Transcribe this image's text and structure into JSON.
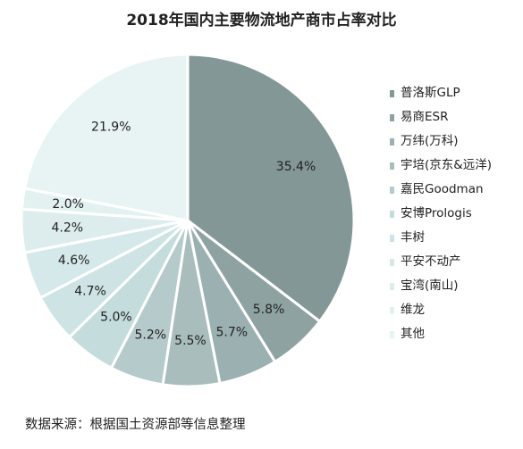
{
  "chart_data": {
    "type": "pie",
    "title": "2018年国内主要物流地产商市占率对比",
    "start": "top",
    "direction": "clockwise",
    "slices": [
      {
        "name": "普洛斯GLP",
        "value": 35.4,
        "label": "35.4%",
        "color": "#849797"
      },
      {
        "name": "易商ESR",
        "value": 5.8,
        "label": "5.8%",
        "color": "#8fa2a2"
      },
      {
        "name": "万纬(万科)",
        "value": 5.7,
        "label": "5.7%",
        "color": "#9bb0b0"
      },
      {
        "name": "宇培(京东&远洋)",
        "value": 5.5,
        "label": "5.5%",
        "color": "#a9bdbd"
      },
      {
        "name": "嘉民Goodman",
        "value": 5.2,
        "label": "5.2%",
        "color": "#b5caca"
      },
      {
        "name": "安博Prologis",
        "value": 5.0,
        "label": "5.0%",
        "color": "#c4dcdc"
      },
      {
        "name": "丰树",
        "value": 4.7,
        "label": "4.7%",
        "color": "#cde3e4"
      },
      {
        "name": "平安不动产",
        "value": 4.6,
        "label": "4.6%",
        "color": "#d6e9ea"
      },
      {
        "name": "宝湾(南山)",
        "value": 4.2,
        "label": "4.2%",
        "color": "#ddedee"
      },
      {
        "name": "维龙",
        "value": 2.0,
        "label": "2.0%",
        "color": "#e3f1f1"
      },
      {
        "name": "其他",
        "value": 21.9,
        "label": "21.9%",
        "color": "#e8f3f3"
      }
    ],
    "legend_placement": "right"
  },
  "footer": {
    "source": "数据来源：根据国土资源部等信息整理"
  }
}
